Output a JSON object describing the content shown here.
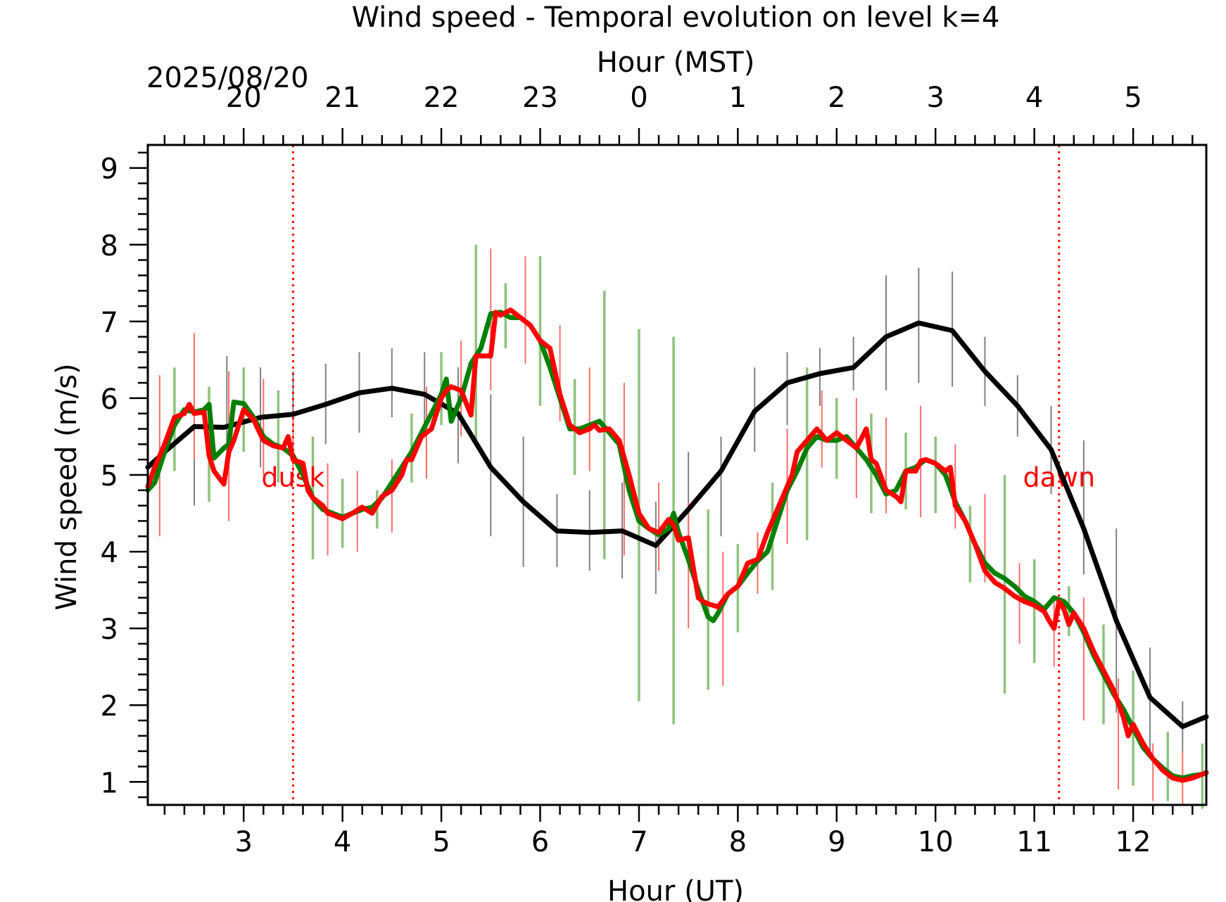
{
  "chart_data": {
    "type": "line",
    "title": "Wind speed - Temporal evolution on level k=4",
    "xlabel": "Hour (UT)",
    "x2label": "Hour (MST)",
    "x2_date_label": "2025/08/20",
    "ylabel": "Wind speed (m/s)",
    "xlim": [
      2.03,
      12.74
    ],
    "ylim": [
      0.7,
      9.3
    ],
    "x_ticks": [
      3,
      4,
      5,
      6,
      7,
      8,
      9,
      10,
      11,
      12
    ],
    "x_tick_labels": [
      "3",
      "4",
      "5",
      "6",
      "7",
      "8",
      "9",
      "10",
      "11",
      "12"
    ],
    "x2_ticks": [
      3,
      4,
      5,
      6,
      7,
      8,
      9,
      10,
      11,
      12
    ],
    "x2_tick_labels": [
      "20",
      "21",
      "22",
      "23",
      "0",
      "1",
      "2",
      "3",
      "4",
      "5"
    ],
    "y_ticks": [
      1,
      2,
      3,
      4,
      5,
      6,
      7,
      8,
      9
    ],
    "y_tick_labels": [
      "1",
      "2",
      "3",
      "4",
      "5",
      "6",
      "7",
      "8",
      "9"
    ],
    "grid": false,
    "events": [
      {
        "label": "dusk",
        "x": 3.5,
        "color": "#ff0000"
      },
      {
        "label": "dawn",
        "x": 11.25,
        "color": "#ff0000"
      }
    ],
    "series": [
      {
        "color": "#000000",
        "x": [
          2.03,
          2.2,
          2.5,
          2.8,
          3.17,
          3.5,
          3.83,
          4.17,
          4.5,
          4.83,
          5.17,
          5.5,
          5.83,
          6.17,
          6.5,
          6.83,
          7.17,
          7.5,
          7.83,
          8.17,
          8.5,
          8.83,
          9.17,
          9.5,
          9.83,
          10.17,
          10.5,
          10.83,
          11.17,
          11.5,
          11.83,
          12.17,
          12.5,
          12.74
        ],
        "y": [
          5.1,
          5.3,
          5.63,
          5.62,
          5.75,
          5.79,
          5.92,
          6.07,
          6.13,
          6.05,
          5.8,
          5.1,
          4.65,
          4.27,
          4.25,
          4.27,
          4.08,
          4.55,
          5.05,
          5.83,
          6.2,
          6.32,
          6.4,
          6.8,
          6.98,
          6.88,
          6.35,
          5.9,
          5.33,
          4.3,
          3.1,
          2.1,
          1.72,
          1.85
        ]
      },
      {
        "color": "#008000",
        "x": [
          2.03,
          2.1,
          2.2,
          2.3,
          2.4,
          2.5,
          2.6,
          2.65,
          2.7,
          2.8,
          2.85,
          2.9,
          3.0,
          3.1,
          3.2,
          3.3,
          3.4,
          3.5,
          3.6,
          3.7,
          3.8,
          3.9,
          4.0,
          4.1,
          4.2,
          4.3,
          4.4,
          4.5,
          4.6,
          4.7,
          4.8,
          4.9,
          5.0,
          5.05,
          5.1,
          5.2,
          5.3,
          5.4,
          5.5,
          5.6,
          5.7,
          5.8,
          5.9,
          6.0,
          6.1,
          6.2,
          6.3,
          6.4,
          6.5,
          6.6,
          6.7,
          6.8,
          6.9,
          7.0,
          7.1,
          7.2,
          7.3,
          7.35,
          7.4,
          7.5,
          7.6,
          7.7,
          7.75,
          7.8,
          7.9,
          8.0,
          8.1,
          8.2,
          8.3,
          8.4,
          8.5,
          8.6,
          8.7,
          8.8,
          8.9,
          9.0,
          9.1,
          9.2,
          9.3,
          9.4,
          9.5,
          9.6,
          9.7,
          9.8,
          9.9,
          10.0,
          10.1,
          10.2,
          10.3,
          10.4,
          10.5,
          10.6,
          10.7,
          10.8,
          10.9,
          11.0,
          11.1,
          11.2,
          11.3,
          11.4,
          11.5,
          11.6,
          11.7,
          11.8,
          11.9,
          12.0,
          12.1,
          12.2,
          12.3,
          12.4,
          12.5,
          12.6,
          12.7,
          12.74
        ],
        "y": [
          4.8,
          4.9,
          5.3,
          5.65,
          5.85,
          5.82,
          5.85,
          5.92,
          5.22,
          5.35,
          5.4,
          5.95,
          5.93,
          5.75,
          5.5,
          5.4,
          5.35,
          5.25,
          5.0,
          4.7,
          4.55,
          4.5,
          4.45,
          4.5,
          4.55,
          4.58,
          4.7,
          4.9,
          5.1,
          5.3,
          5.55,
          5.8,
          6.05,
          6.25,
          5.7,
          6.0,
          6.45,
          6.65,
          7.1,
          7.12,
          7.05,
          7.05,
          6.95,
          6.75,
          6.4,
          6.0,
          5.6,
          5.6,
          5.65,
          5.7,
          5.55,
          5.4,
          4.8,
          4.4,
          4.3,
          4.22,
          4.3,
          4.5,
          4.25,
          3.9,
          3.5,
          3.15,
          3.1,
          3.2,
          3.45,
          3.55,
          3.72,
          3.88,
          4.0,
          4.4,
          4.8,
          5.05,
          5.35,
          5.5,
          5.45,
          5.45,
          5.5,
          5.35,
          5.2,
          5.0,
          4.75,
          4.8,
          5.05,
          5.1,
          5.2,
          5.15,
          5.0,
          4.65,
          4.4,
          4.1,
          3.85,
          3.72,
          3.65,
          3.55,
          3.42,
          3.35,
          3.25,
          3.4,
          3.35,
          3.2,
          2.95,
          2.65,
          2.4,
          2.15,
          1.95,
          1.7,
          1.45,
          1.3,
          1.18,
          1.08,
          1.05,
          1.08,
          1.1,
          1.12
        ]
      },
      {
        "color": "#ff0000",
        "x": [
          2.03,
          2.1,
          2.2,
          2.3,
          2.4,
          2.45,
          2.5,
          2.6,
          2.65,
          2.7,
          2.8,
          2.85,
          2.9,
          3.0,
          3.1,
          3.2,
          3.3,
          3.4,
          3.45,
          3.5,
          3.6,
          3.65,
          3.7,
          3.8,
          3.85,
          3.9,
          4.0,
          4.1,
          4.2,
          4.3,
          4.4,
          4.5,
          4.6,
          4.65,
          4.7,
          4.8,
          4.85,
          4.9,
          5.0,
          5.05,
          5.1,
          5.2,
          5.3,
          5.35,
          5.4,
          5.5,
          5.55,
          5.6,
          5.7,
          5.8,
          5.9,
          6.0,
          6.1,
          6.2,
          6.3,
          6.4,
          6.5,
          6.55,
          6.6,
          6.7,
          6.8,
          6.9,
          7.0,
          7.1,
          7.2,
          7.3,
          7.35,
          7.4,
          7.5,
          7.6,
          7.65,
          7.7,
          7.8,
          7.9,
          8.0,
          8.1,
          8.2,
          8.3,
          8.4,
          8.5,
          8.55,
          8.6,
          8.7,
          8.8,
          8.9,
          9.0,
          9.1,
          9.2,
          9.3,
          9.35,
          9.4,
          9.5,
          9.6,
          9.65,
          9.7,
          9.8,
          9.85,
          9.9,
          10.0,
          10.1,
          10.15,
          10.2,
          10.3,
          10.4,
          10.5,
          10.6,
          10.7,
          10.8,
          10.9,
          11.0,
          11.1,
          11.15,
          11.2,
          11.25,
          11.3,
          11.35,
          11.4,
          11.5,
          11.6,
          11.7,
          11.8,
          11.9,
          11.95,
          12.0,
          12.1,
          12.2,
          12.3,
          12.4,
          12.5,
          12.6,
          12.7,
          12.74
        ],
        "y": [
          4.85,
          5.1,
          5.4,
          5.75,
          5.8,
          5.92,
          5.8,
          5.82,
          5.25,
          5.05,
          4.88,
          5.3,
          5.45,
          5.85,
          5.72,
          5.45,
          5.38,
          5.35,
          5.5,
          5.2,
          5.15,
          4.8,
          4.7,
          4.6,
          4.5,
          4.48,
          4.43,
          4.5,
          4.58,
          4.5,
          4.72,
          4.8,
          5.0,
          5.2,
          5.2,
          5.5,
          5.55,
          5.6,
          6.0,
          6.1,
          6.15,
          6.1,
          5.78,
          6.55,
          6.55,
          6.55,
          7.12,
          7.08,
          7.15,
          7.05,
          6.95,
          6.75,
          6.65,
          6.05,
          5.65,
          5.55,
          5.6,
          5.65,
          5.58,
          5.6,
          5.45,
          5.0,
          4.5,
          4.3,
          4.25,
          4.42,
          4.35,
          4.15,
          4.18,
          3.4,
          3.35,
          3.32,
          3.28,
          3.45,
          3.55,
          3.85,
          3.9,
          4.25,
          4.55,
          4.85,
          5.0,
          5.3,
          5.45,
          5.6,
          5.45,
          5.55,
          5.45,
          5.35,
          5.6,
          5.2,
          5.15,
          4.8,
          4.72,
          4.65,
          5.05,
          5.05,
          5.18,
          5.2,
          5.15,
          5.05,
          5.1,
          4.6,
          4.4,
          4.1,
          3.75,
          3.6,
          3.52,
          3.42,
          3.35,
          3.3,
          3.22,
          3.1,
          3.0,
          3.35,
          3.25,
          3.05,
          3.2,
          3.0,
          2.7,
          2.45,
          2.2,
          1.85,
          1.6,
          1.75,
          1.5,
          1.3,
          1.15,
          1.05,
          1.02,
          1.05,
          1.1,
          1.12
        ]
      }
    ],
    "errorbars": [
      {
        "color": "#808080",
        "x": [
          2.5,
          2.83,
          3.17,
          3.5,
          3.83,
          4.17,
          4.5,
          4.83,
          5.17,
          5.5,
          5.83,
          6.17,
          6.5,
          6.83,
          7.17,
          7.5,
          7.83,
          8.17,
          8.5,
          8.83,
          9.17,
          9.5,
          9.83,
          10.17,
          10.5,
          10.83,
          11.17,
          11.5,
          11.83,
          12.17,
          12.5
        ],
        "low": [
          4.6,
          5.0,
          5.1,
          5.3,
          5.4,
          5.55,
          5.75,
          5.5,
          5.15,
          4.2,
          3.8,
          3.8,
          3.75,
          3.65,
          3.45,
          3.85,
          4.2,
          5.3,
          5.65,
          5.9,
          6.1,
          6.1,
          6.2,
          6.15,
          5.9,
          5.5,
          4.75,
          3.7,
          1.9,
          1.3,
          1.4
        ],
        "high": [
          6.65,
          6.55,
          6.4,
          6.35,
          6.45,
          6.6,
          6.65,
          6.6,
          6.4,
          6.05,
          5.5,
          4.75,
          4.8,
          4.9,
          4.65,
          5.3,
          5.5,
          6.4,
          6.6,
          6.65,
          6.8,
          7.6,
          7.7,
          7.65,
          6.8,
          6.3,
          5.9,
          5.45,
          4.3,
          2.75,
          2.05
        ]
      },
      {
        "color": "#8fc27e",
        "x": [
          2.3,
          2.65,
          3.0,
          3.35,
          3.7,
          4.0,
          4.35,
          4.7,
          5.0,
          5.35,
          5.65,
          6.0,
          6.35,
          6.65,
          7.0,
          7.35,
          7.7,
          8.0,
          8.35,
          8.7,
          9.0,
          9.35,
          9.7,
          10.0,
          10.35,
          10.7,
          11.0,
          11.35,
          11.7,
          12.0,
          12.35,
          12.7
        ],
        "low": [
          5.05,
          4.65,
          5.3,
          4.9,
          3.9,
          4.05,
          4.3,
          4.9,
          5.65,
          5.4,
          6.65,
          5.9,
          5.0,
          3.9,
          2.05,
          1.75,
          2.2,
          2.95,
          3.5,
          4.15,
          4.95,
          4.5,
          4.55,
          4.5,
          3.6,
          2.15,
          2.55,
          2.9,
          1.75,
          0.95,
          0.75,
          0.65
        ],
        "high": [
          6.4,
          6.15,
          6.4,
          6.1,
          5.5,
          4.95,
          4.8,
          5.8,
          6.6,
          8.0,
          7.5,
          7.85,
          6.25,
          7.4,
          6.9,
          6.8,
          4.55,
          4.1,
          4.9,
          6.4,
          6.0,
          5.8,
          5.55,
          5.5,
          4.6,
          5.0,
          3.9,
          3.55,
          3.05,
          2.45,
          1.65,
          1.5
        ]
      },
      {
        "color": "#ff6b6b",
        "x": [
          2.15,
          2.5,
          2.85,
          3.2,
          3.5,
          3.85,
          4.15,
          4.5,
          4.85,
          5.2,
          5.5,
          5.85,
          6.2,
          6.5,
          6.85,
          7.2,
          7.5,
          7.85,
          8.2,
          8.5,
          8.85,
          9.2,
          9.5,
          9.85,
          10.2,
          10.5,
          10.85,
          11.2,
          11.5,
          11.85,
          12.2,
          12.5
        ],
        "low": [
          4.2,
          5.2,
          4.4,
          5.0,
          4.9,
          3.95,
          4.0,
          4.25,
          4.95,
          5.5,
          6.1,
          6.45,
          5.7,
          5.05,
          3.95,
          3.75,
          3.0,
          2.25,
          3.45,
          4.1,
          5.1,
          4.7,
          4.5,
          4.45,
          4.3,
          3.6,
          2.8,
          2.5,
          1.8,
          0.9,
          0.75,
          0.7
        ],
        "high": [
          6.3,
          6.85,
          6.35,
          6.25,
          5.75,
          5.15,
          5.05,
          5.2,
          6.15,
          6.75,
          7.95,
          7.85,
          6.95,
          6.4,
          6.2,
          4.9,
          4.65,
          4.0,
          4.25,
          5.6,
          6.1,
          6.0,
          5.75,
          5.9,
          5.4,
          4.75,
          3.85,
          3.4,
          3.4,
          2.35,
          1.5,
          1.4
        ]
      }
    ]
  }
}
